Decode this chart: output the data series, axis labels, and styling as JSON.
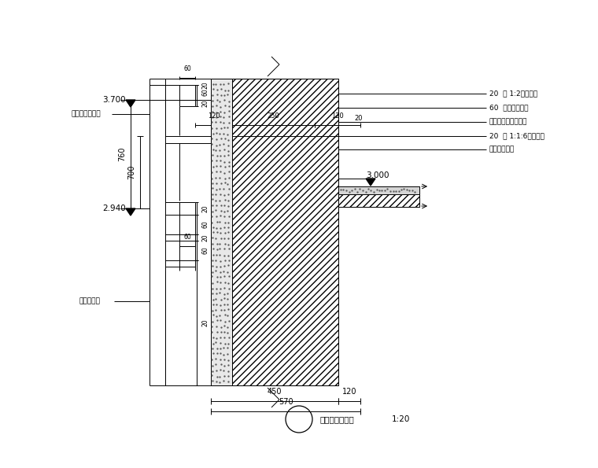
{
  "bg_color": "#ffffff",
  "line_color": "#000000",
  "title": "山墙一层顶线角",
  "scale_label": "1:20",
  "elevation_top": "3.700",
  "elevation_mid": "2.940",
  "elevation_right": "3.000",
  "annotations_left": [
    "氟白色外墙面砖",
    "刷白色涂料"
  ],
  "annotations_right": [
    "20  厚 1:2水泥砂浆",
    "60  厚护坡混凝土",
    "现浇钢筋混凝土楼板",
    "20  厚 1:1:6混合砂浆",
    "刷白相色涂料"
  ],
  "dims_vertical_left": [
    "20",
    "60",
    "20"
  ],
  "dims_vertical_mid": [
    "700",
    "760"
  ],
  "dims_vertical_bot": [
    "20",
    "60",
    "20",
    "60",
    "20"
  ],
  "dims_horiz_mid": [
    "120",
    "250",
    "120"
  ],
  "dims_horiz_bot": [
    "450",
    "120",
    "570"
  ],
  "dim_60_top": "60",
  "dim_60_bot": "60",
  "dim_20_right": "20"
}
